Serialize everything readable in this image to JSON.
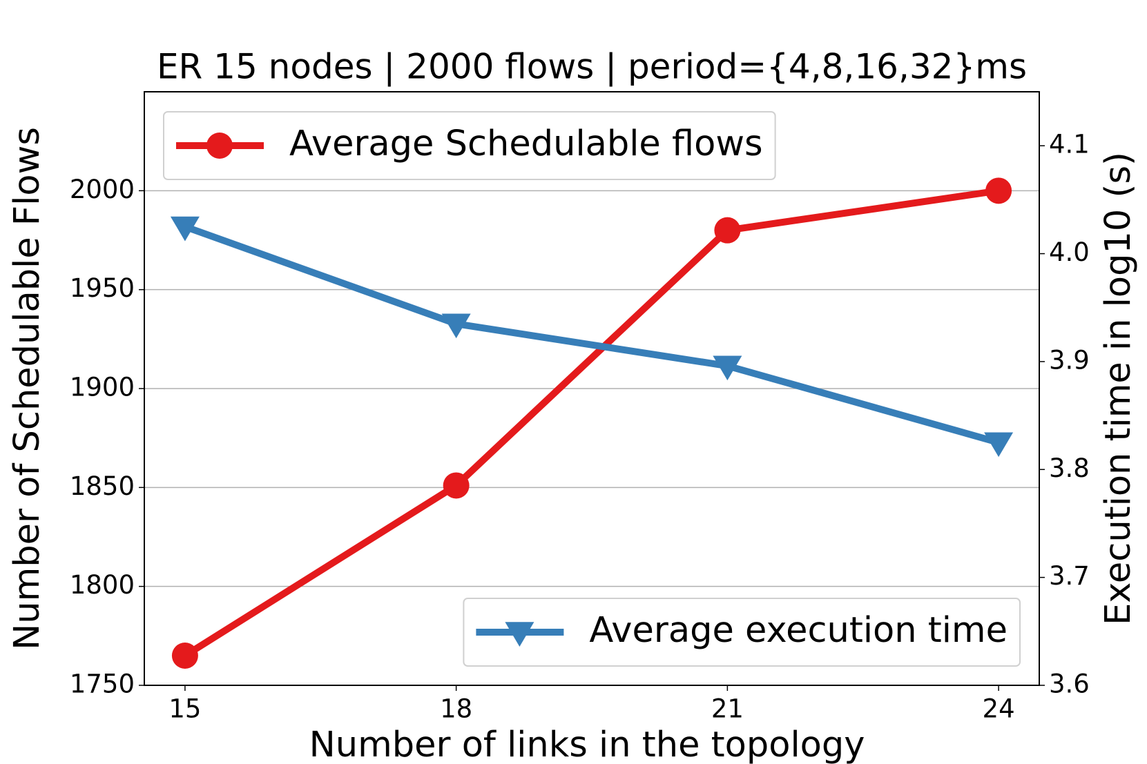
{
  "chart_data": {
    "type": "line",
    "title": "ER 15 nodes | 2000 flows | period={4,8,16,32}ms",
    "xlabel": "Number of links in the topology",
    "ylabel": "Number of Schedulable Flows",
    "y2label": "Execution time in log10 (s)",
    "x": [
      15,
      18,
      21,
      24
    ],
    "xlim": [
      14.55,
      24.45
    ],
    "xticks": [
      15,
      18,
      21,
      24
    ],
    "ylim": [
      1750,
      2050
    ],
    "yticks": [
      1750,
      1800,
      1850,
      1900,
      1950,
      2000
    ],
    "y2lim": [
      3.6,
      4.15
    ],
    "y2ticks": [
      3.6,
      3.7,
      3.8,
      3.9,
      {
        "value": 4,
        "label": "4.0"
      },
      4.1
    ],
    "grid": true,
    "series": [
      {
        "name": "Average Schedulable flows",
        "color": "#e41a1c",
        "marker": "circle",
        "axis": "y",
        "legend": "upper left",
        "values": [
          1765,
          1851,
          1980,
          2000
        ]
      },
      {
        "name": "Average execution time",
        "color": "#377eb8",
        "marker": "triangle-down",
        "axis": "y2",
        "legend": "lower right",
        "values": [
          4.025,
          3.935,
          3.896,
          3.825
        ]
      }
    ]
  }
}
